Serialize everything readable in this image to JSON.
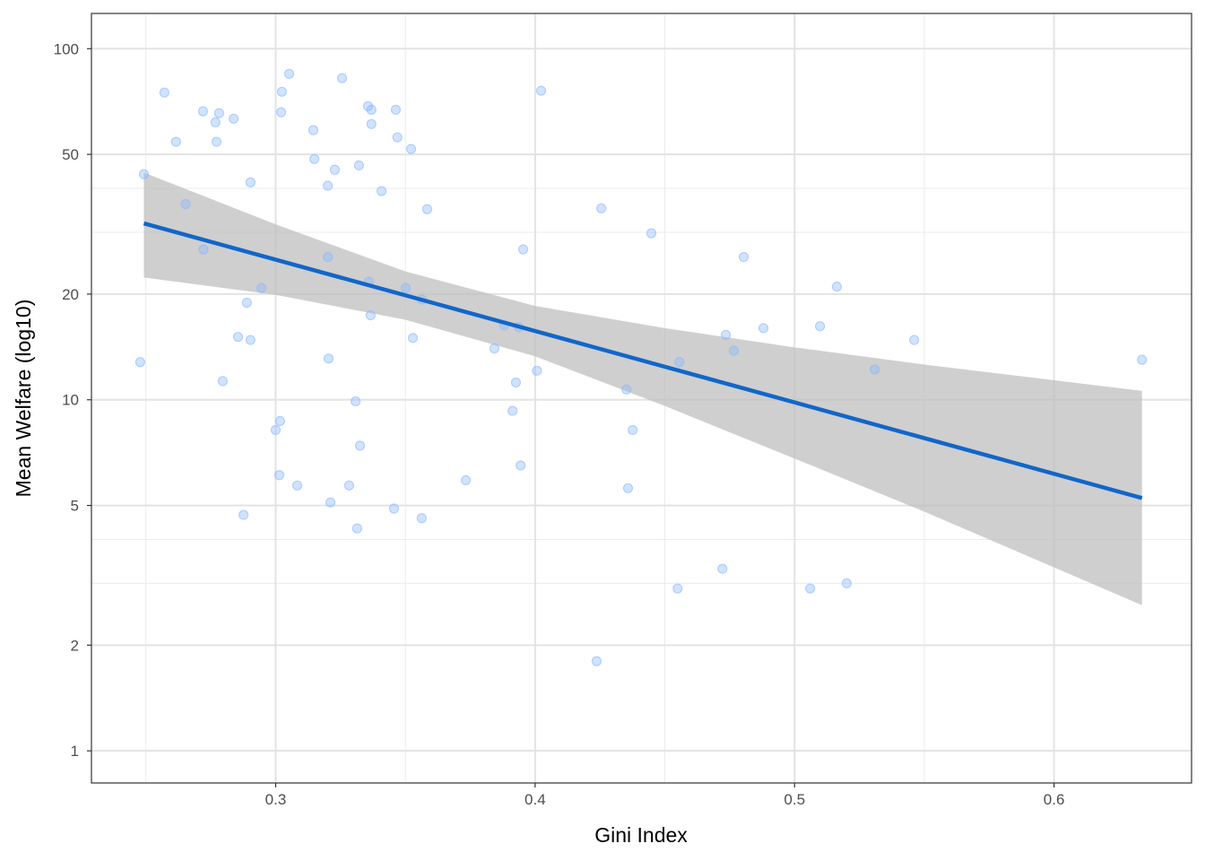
{
  "chart_data": {
    "type": "scatter",
    "title": "",
    "xlabel": "Gini Index",
    "ylabel": "Mean Welfare (log10)",
    "xlim": [
      0.229,
      0.653
    ],
    "ylim": [
      0.81,
      126
    ],
    "y_scale": "log10",
    "grid": true,
    "x_ticks": [
      0.3,
      0.4,
      0.5,
      0.6
    ],
    "x_tick_labels": [
      "0.3",
      "0.4",
      "0.5",
      "0.6"
    ],
    "x_minor": [
      0.25,
      0.35,
      0.45,
      0.55
    ],
    "y_ticks": [
      1,
      2,
      5,
      10,
      20,
      50,
      100
    ],
    "y_tick_labels": [
      "1",
      "2",
      "5",
      "10",
      "20",
      "50",
      "100"
    ],
    "y_minor": [
      3,
      4,
      30,
      40
    ],
    "colors": {
      "points": "#8ab8ff",
      "line": "#1166c9",
      "band": "#bfbfbf"
    },
    "points": {
      "x": [
        0.2492,
        0.2571,
        0.2616,
        0.272,
        0.2768,
        0.2782,
        0.2772,
        0.2838,
        0.2653,
        0.2903,
        0.2722,
        0.2945,
        0.2889,
        0.2855,
        0.2903,
        0.2478,
        0.2796,
        0.3,
        0.3017,
        0.3014,
        0.3083,
        0.2876,
        0.3052,
        0.3024,
        0.3021,
        0.3256,
        0.3145,
        0.3149,
        0.3228,
        0.3321,
        0.3201,
        0.3356,
        0.3369,
        0.3463,
        0.3369,
        0.3469,
        0.3522,
        0.3408,
        0.3584,
        0.3201,
        0.3359,
        0.3501,
        0.3563,
        0.3366,
        0.3529,
        0.3204,
        0.3308,
        0.3325,
        0.3283,
        0.3211,
        0.3314,
        0.3456,
        0.3563,
        0.3733,
        0.4023,
        0.3954,
        0.3881,
        0.3937,
        0.3843,
        0.4007,
        0.3926,
        0.3913,
        0.3944,
        0.4255,
        0.4448,
        0.4352,
        0.4376,
        0.4358,
        0.4237,
        0.4556,
        0.4549,
        0.4722,
        0.4735,
        0.4766,
        0.4804,
        0.488,
        0.506,
        0.5098,
        0.5163,
        0.5201,
        0.5309,
        0.5461,
        0.6339
      ],
      "y": [
        43.9,
        75.0,
        54.3,
        66.3,
        61.7,
        65.5,
        54.3,
        63.2,
        36.1,
        41.6,
        26.8,
        20.8,
        18.9,
        15.1,
        14.8,
        12.8,
        11.3,
        8.2,
        8.7,
        6.1,
        5.7,
        4.7,
        84.8,
        75.4,
        65.9,
        82.4,
        58.6,
        48.5,
        45.2,
        46.5,
        40.7,
        68.6,
        67.0,
        67.0,
        61.0,
        55.9,
        51.8,
        39.3,
        34.9,
        25.5,
        21.7,
        20.8,
        19.3,
        17.4,
        15.0,
        13.1,
        9.9,
        7.4,
        5.7,
        5.1,
        4.3,
        4.9,
        4.6,
        5.9,
        75.9,
        26.8,
        16.3,
        16.1,
        14.0,
        12.1,
        11.2,
        9.3,
        6.5,
        35.1,
        29.8,
        10.7,
        8.2,
        5.6,
        1.8,
        12.8,
        2.9,
        3.3,
        15.3,
        13.8,
        25.5,
        16.0,
        2.9,
        16.2,
        21.0,
        3.0,
        12.2,
        14.8,
        13.0
      ]
    },
    "fit_line": {
      "x": [
        0.2492,
        0.6339
      ],
      "y": [
        31.8,
        5.25
      ]
    },
    "confidence_band": {
      "x": [
        0.2492,
        0.3,
        0.35,
        0.4,
        0.45,
        0.5,
        0.55,
        0.6339
      ],
      "upper": [
        44.4,
        31.6,
        23.2,
        18.5,
        16.0,
        14.1,
        12.6,
        10.6
      ],
      "lower": [
        22.3,
        19.9,
        16.9,
        13.3,
        9.6,
        6.8,
        4.8,
        2.6
      ]
    }
  }
}
